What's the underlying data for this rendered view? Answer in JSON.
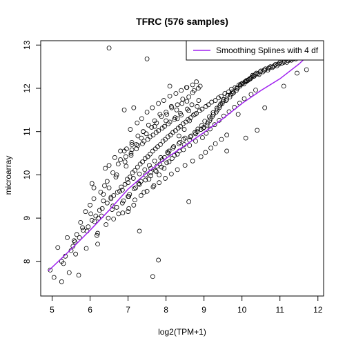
{
  "chart_data": {
    "type": "scatter",
    "title": "TFRC (576 samples)",
    "xlabel": "log2(TPM+1)",
    "ylabel": "microarray",
    "xlim": [
      4.7,
      12.15
    ],
    "ylim": [
      7.2,
      13.1
    ],
    "xticks": [
      5,
      6,
      7,
      8,
      9,
      10,
      11,
      12
    ],
    "yticks": [
      8,
      9,
      10,
      11,
      12,
      13
    ],
    "grid": false,
    "legend": {
      "position": "top-right",
      "entries": [
        {
          "label": "Smoothing Splines with 4 df",
          "color": "#a020f0"
        }
      ]
    },
    "series": [
      {
        "kind": "points",
        "marker": "open-circle",
        "color": "#000000",
        "x": [
          6.5,
          7.5,
          7.65,
          8.1,
          8.8,
          7.15,
          8.6,
          7.8,
          7.3,
          7.0,
          6.2,
          5.7,
          4.95,
          5.05,
          5.15,
          5.25,
          5.45,
          5.62,
          5.9,
          6.9,
          8.55,
          9.6,
          10.4,
          11.45,
          11.7,
          5.25,
          5.35,
          5.5,
          5.58,
          5.72,
          5.82,
          5.95,
          6.05,
          6.15,
          6.25,
          6.32,
          6.45,
          6.55,
          6.62,
          6.72,
          6.82,
          6.92,
          6.98,
          7.05,
          7.12,
          7.18,
          7.25,
          7.32,
          7.38,
          7.45,
          7.52,
          7.58,
          7.65,
          7.72,
          7.78,
          7.85,
          7.92,
          7.98,
          8.05,
          8.12,
          8.18,
          8.25,
          8.32,
          8.38,
          8.45,
          8.52,
          8.58,
          8.65,
          8.72,
          8.8,
          8.88,
          8.95,
          9.05,
          9.12,
          9.2,
          9.3,
          9.38,
          9.45,
          9.55,
          9.65,
          9.72,
          9.82,
          9.92,
          10.02,
          10.12,
          10.22,
          10.32,
          10.45,
          10.55,
          10.68,
          10.8,
          10.92,
          11.05,
          11.18,
          11.3,
          11.42,
          11.55,
          11.68,
          11.75,
          5.3,
          5.55,
          5.65,
          5.8,
          5.92,
          6.02,
          6.12,
          6.22,
          6.35,
          6.42,
          6.5,
          6.58,
          6.68,
          6.75,
          6.85,
          6.95,
          7.02,
          7.08,
          7.15,
          7.22,
          7.28,
          7.35,
          7.42,
          7.48,
          7.55,
          7.62,
          7.68,
          7.75,
          7.82,
          7.88,
          7.95,
          8.02,
          8.08,
          8.15,
          8.22,
          8.28,
          8.35,
          8.42,
          8.48,
          8.55,
          8.62,
          8.7,
          8.78,
          8.85,
          8.92,
          9.0,
          9.1,
          9.18,
          9.25,
          9.35,
          9.42,
          9.5,
          9.6,
          9.7,
          9.78,
          9.88,
          9.98,
          10.08,
          10.18,
          10.28,
          10.38,
          10.5,
          10.62,
          10.75,
          10.88,
          11.0,
          11.12,
          11.25,
          11.38,
          11.5,
          11.62,
          5.4,
          5.6,
          5.75,
          5.88,
          6.0,
          6.1,
          6.18,
          6.28,
          6.38,
          6.48,
          6.6,
          6.7,
          6.8,
          6.88,
          6.96,
          7.04,
          7.1,
          7.2,
          7.26,
          7.34,
          7.4,
          7.46,
          7.54,
          7.6,
          7.7,
          7.76,
          7.84,
          7.9,
          8.0,
          8.06,
          8.14,
          8.2,
          8.3,
          8.36,
          8.44,
          8.5,
          8.6,
          8.66,
          8.74,
          8.82,
          8.9,
          8.98,
          9.08,
          9.15,
          9.22,
          9.32,
          9.4,
          9.48,
          9.58,
          9.68,
          9.75,
          9.85,
          9.95,
          10.05,
          10.15,
          10.25,
          10.35,
          10.48,
          10.6,
          10.72,
          10.85,
          10.98,
          11.1,
          11.22,
          11.35,
          11.48,
          11.6,
          6.05,
          6.3,
          6.4,
          6.55,
          6.65,
          6.78,
          6.9,
          7.0,
          7.06,
          7.14,
          7.24,
          7.3,
          7.36,
          7.44,
          7.5,
          7.56,
          7.64,
          7.7,
          7.8,
          7.86,
          7.94,
          8.04,
          8.1,
          8.18,
          8.26,
          8.34,
          8.4,
          8.46,
          8.54,
          8.64,
          8.7,
          8.76,
          8.84,
          8.94,
          9.02,
          9.14,
          9.24,
          9.34,
          9.44,
          9.52,
          9.62,
          9.74,
          9.86,
          9.96,
          10.1,
          10.2,
          10.3,
          10.42,
          10.58,
          10.7,
          10.82,
          10.95,
          6.1,
          6.35,
          6.6,
          6.7,
          6.85,
          6.92,
          7.0,
          7.08,
          7.16,
          7.22,
          7.3,
          7.38,
          7.46,
          7.52,
          7.6,
          7.66,
          7.74,
          7.8,
          7.88,
          7.96,
          8.02,
          8.1,
          8.16,
          8.24,
          8.3,
          8.38,
          8.46,
          8.56,
          8.62,
          8.68,
          8.78,
          8.86,
          8.96,
          9.06,
          9.16,
          9.28,
          9.4,
          9.52,
          9.66,
          9.8,
          9.94,
          10.06,
          10.24,
          10.36,
          6.2,
          6.45,
          6.62,
          6.74,
          6.86,
          6.94,
          7.02,
          7.1,
          7.18,
          7.26,
          7.34,
          7.42,
          7.5,
          7.58,
          7.66,
          7.74,
          7.82,
          7.9,
          7.98,
          8.06,
          8.14,
          8.22,
          8.3,
          8.4,
          8.5,
          8.6,
          8.7,
          8.82,
          8.92,
          9.04,
          9.18,
          9.3,
          9.46,
          9.6,
          7.6,
          7.72,
          7.84,
          7.96,
          8.08,
          8.2,
          8.34,
          8.48,
          8.62,
          8.76,
          6.5,
          6.8,
          7.1,
          7.4,
          7.7,
          8.0,
          8.3,
          9.9,
          10.1,
          10.6,
          11.1
        ],
        "y": [
          12.93,
          12.68,
          7.65,
          12.05,
          12.15,
          11.55,
          9.38,
          8.03,
          8.7,
          9.15,
          8.4,
          7.68,
          7.8,
          7.63,
          8.32,
          7.53,
          7.74,
          8.17,
          8.3,
          11.5,
          12.02,
          10.55,
          11.03,
          12.35,
          12.43,
          8.0,
          8.12,
          8.25,
          8.48,
          8.55,
          8.72,
          8.8,
          8.95,
          9.05,
          9.18,
          9.22,
          9.35,
          9.45,
          9.52,
          9.6,
          9.72,
          9.78,
          9.9,
          9.95,
          10.05,
          10.1,
          10.18,
          10.25,
          10.3,
          10.38,
          10.42,
          10.48,
          10.55,
          10.6,
          10.65,
          10.7,
          10.78,
          10.82,
          10.88,
          10.92,
          10.98,
          11.02,
          11.08,
          11.12,
          11.18,
          11.22,
          11.28,
          11.32,
          11.38,
          11.42,
          11.48,
          11.52,
          11.58,
          11.62,
          11.68,
          11.72,
          11.78,
          11.82,
          11.88,
          11.92,
          11.98,
          12.02,
          12.08,
          12.12,
          12.18,
          12.22,
          12.28,
          12.32,
          12.38,
          12.42,
          12.48,
          12.52,
          12.58,
          12.6,
          12.65,
          12.68,
          12.72,
          12.75,
          12.78,
          7.95,
          8.35,
          8.62,
          8.78,
          8.7,
          9.1,
          8.92,
          9.0,
          9.4,
          8.85,
          9.7,
          9.2,
          9.95,
          9.1,
          9.65,
          10.2,
          9.5,
          10.5,
          9.3,
          10.7,
          9.8,
          10.85,
          9.6,
          10.95,
          9.9,
          11.1,
          9.75,
          11.2,
          10.0,
          11.35,
          10.15,
          11.4,
          10.3,
          11.55,
          10.45,
          11.5,
          10.55,
          11.65,
          10.7,
          11.7,
          10.8,
          11.9,
          10.95,
          12.0,
          11.05,
          11.1,
          11.2,
          11.3,
          11.4,
          11.5,
          11.6,
          11.7,
          11.75,
          11.85,
          11.9,
          12.0,
          12.1,
          12.15,
          12.2,
          12.3,
          12.35,
          12.4,
          12.45,
          12.5,
          12.55,
          12.6,
          12.62,
          12.66,
          12.7,
          12.74,
          12.78,
          8.55,
          8.45,
          8.9,
          9.15,
          9.3,
          9.45,
          8.6,
          9.6,
          9.75,
          9.0,
          10.05,
          9.25,
          10.35,
          9.4,
          10.6,
          9.55,
          10.75,
          9.7,
          10.9,
          9.85,
          11.0,
          10.0,
          11.15,
          10.15,
          11.25,
          10.2,
          11.4,
          10.35,
          11.45,
          10.5,
          11.58,
          10.65,
          11.62,
          10.75,
          11.75,
          10.85,
          11.8,
          10.9,
          11.95,
          11.0,
          12.05,
          11.08,
          11.15,
          11.25,
          11.35,
          11.45,
          11.55,
          11.65,
          11.72,
          11.8,
          11.88,
          11.95,
          12.05,
          12.1,
          12.18,
          12.25,
          12.32,
          12.38,
          12.42,
          12.48,
          12.52,
          12.56,
          12.6,
          12.64,
          12.68,
          12.72,
          12.76,
          9.8,
          9.05,
          10.15,
          9.48,
          10.4,
          9.62,
          10.55,
          9.82,
          11.05,
          9.92,
          11.2,
          10.02,
          11.3,
          10.12,
          11.45,
          10.22,
          11.55,
          10.32,
          11.65,
          10.4,
          11.72,
          10.52,
          11.82,
          10.62,
          11.88,
          10.72,
          11.95,
          10.82,
          12.02,
          10.88,
          12.08,
          10.98,
          11.06,
          11.14,
          11.24,
          11.34,
          11.44,
          11.54,
          11.64,
          11.74,
          11.84,
          11.92,
          12.0,
          12.08,
          12.15,
          12.22,
          12.28,
          12.34,
          12.42,
          12.46,
          12.5,
          12.56,
          9.7,
          9.55,
          9.28,
          10.0,
          9.35,
          10.3,
          9.5,
          10.45,
          9.68,
          10.6,
          9.78,
          10.72,
          9.88,
          10.82,
          9.98,
          10.92,
          10.08,
          11.02,
          10.18,
          11.12,
          10.28,
          11.22,
          10.38,
          11.32,
          10.48,
          11.42,
          10.58,
          11.52,
          10.68,
          11.62,
          10.78,
          11.72,
          10.86,
          10.96,
          11.06,
          11.16,
          11.26,
          11.36,
          11.46,
          11.56,
          11.66,
          11.76,
          11.86,
          11.96,
          8.65,
          9.85,
          8.98,
          10.25,
          9.12,
          10.42,
          9.22,
          10.58,
          9.42,
          10.68,
          9.52,
          10.78,
          9.62,
          10.88,
          9.72,
          10.98,
          9.82,
          11.08,
          9.92,
          11.18,
          10.02,
          11.28,
          10.12,
          11.38,
          10.22,
          11.48,
          10.32,
          11.58,
          10.42,
          10.52,
          10.62,
          10.72,
          10.82,
          10.92,
          10.05,
          10.1,
          10.25,
          10.4,
          10.55,
          10.65,
          10.9,
          11.05,
          11.25,
          11.4,
          10.22,
          10.55,
          10.7,
          11.0,
          11.12,
          11.25,
          11.3,
          11.4,
          10.85,
          11.55,
          12.05
        ]
      },
      {
        "kind": "line",
        "name": "Smoothing Splines with 4 df",
        "color": "#a020f0",
        "x": [
          4.9,
          5.5,
          6.0,
          6.5,
          7.0,
          7.5,
          8.0,
          8.5,
          9.0,
          9.5,
          10.0,
          10.5,
          11.0,
          11.5,
          11.85
        ],
        "y": [
          7.78,
          8.28,
          8.72,
          9.18,
          9.67,
          10.05,
          10.38,
          10.68,
          10.98,
          11.3,
          11.65,
          11.95,
          12.22,
          12.56,
          12.85
        ]
      }
    ]
  }
}
